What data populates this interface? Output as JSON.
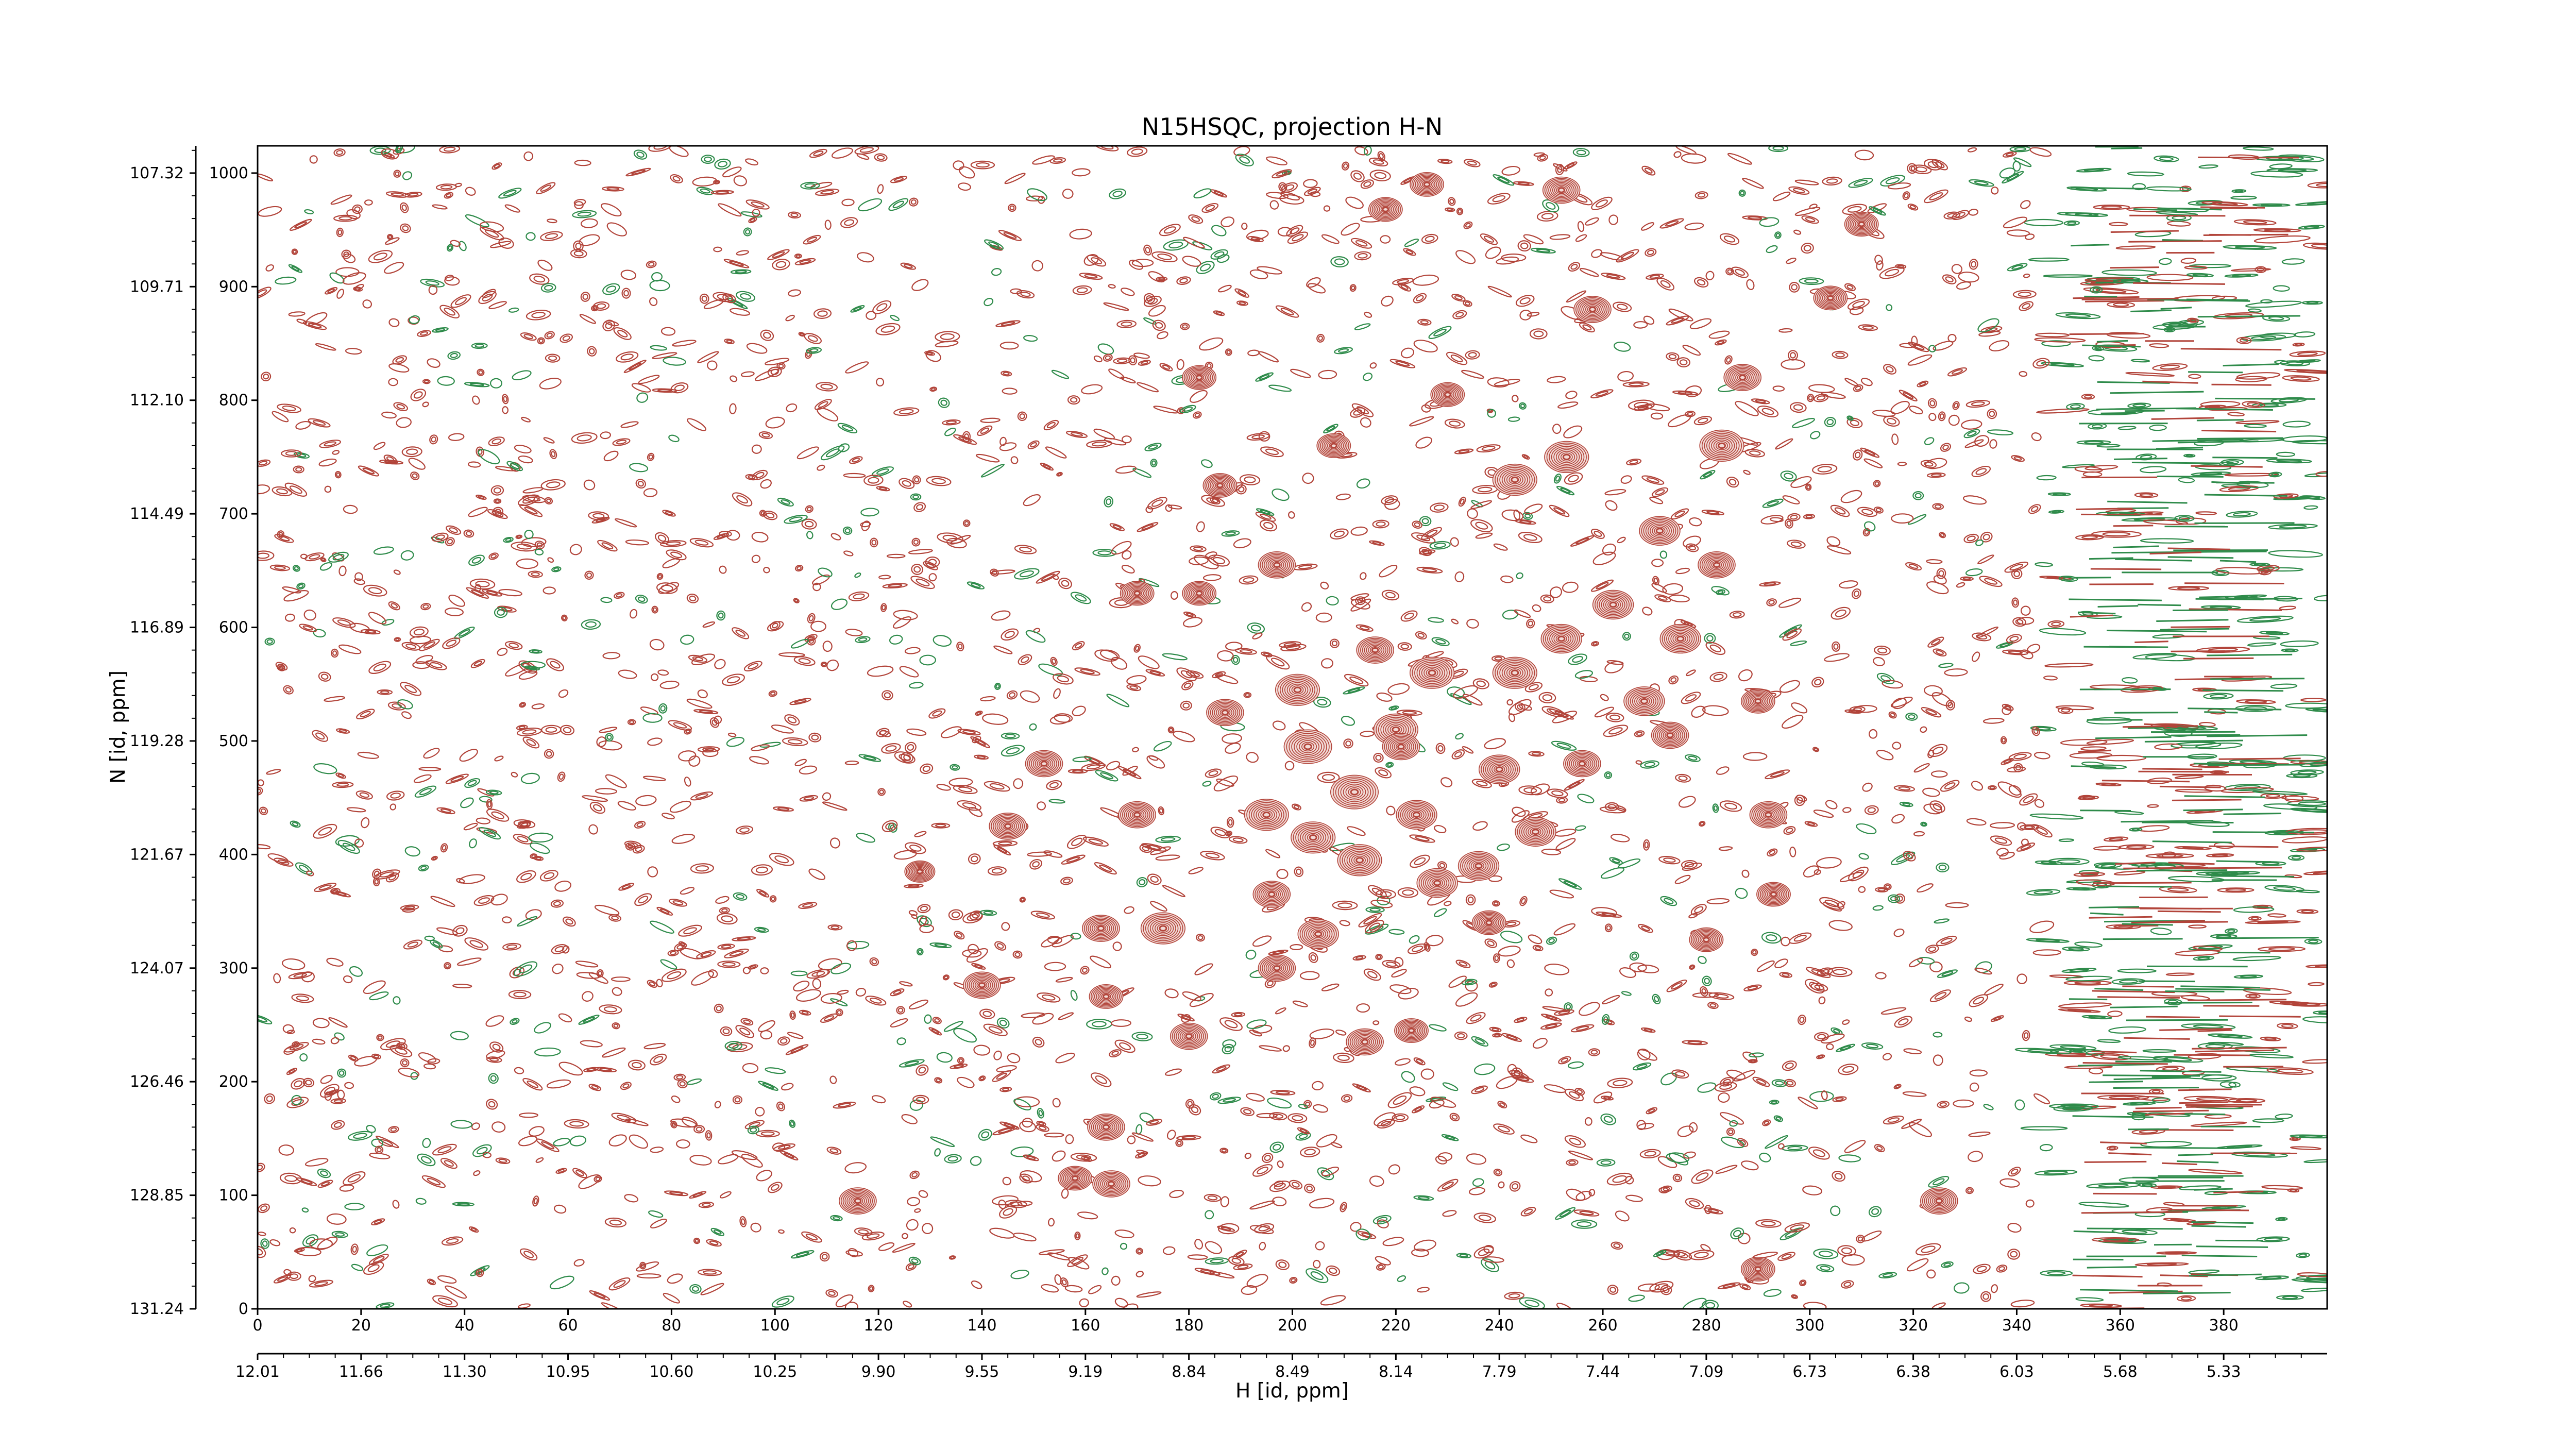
{
  "chart_data": {
    "type": "contour",
    "title": "N15HSQC, projection H-N",
    "xlabel": "H [id, ppm]",
    "ylabel": "N [id, ppm]",
    "xlim": [
      0,
      400
    ],
    "ylim": [
      0,
      1024
    ],
    "grid": false,
    "x_index_ticks": [
      "0",
      "20",
      "40",
      "60",
      "80",
      "100",
      "120",
      "140",
      "160",
      "180",
      "200",
      "220",
      "240",
      "260",
      "280",
      "300",
      "320",
      "340",
      "360",
      "380"
    ],
    "x_ppm_ticks": [
      "12.01",
      "11.66",
      "11.30",
      "10.95",
      "10.60",
      "10.25",
      "9.90",
      "9.55",
      "9.19",
      "8.84",
      "8.49",
      "8.14",
      "7.79",
      "7.44",
      "7.09",
      "6.73",
      "6.38",
      "6.03",
      "5.68",
      "5.33"
    ],
    "y_index_ticks": [
      "0",
      "100",
      "200",
      "300",
      "400",
      "500",
      "600",
      "700",
      "800",
      "900",
      "1000"
    ],
    "y_ppm_ticks": [
      "131.24",
      "128.85",
      "126.46",
      "124.07",
      "121.67",
      "119.28",
      "116.89",
      "114.49",
      "112.10",
      "109.71",
      "107.32"
    ],
    "colors": {
      "positive": "#b2443a",
      "negative": "#2e8b4a"
    },
    "peaks": [
      {
        "x": 116,
        "y": 95,
        "s": 1.0
      },
      {
        "x": 128,
        "y": 385,
        "s": 0.8
      },
      {
        "x": 140,
        "y": 285,
        "s": 1.0
      },
      {
        "x": 145,
        "y": 425,
        "s": 1.0
      },
      {
        "x": 152,
        "y": 480,
        "s": 1.0
      },
      {
        "x": 158,
        "y": 115,
        "s": 0.9
      },
      {
        "x": 164,
        "y": 160,
        "s": 1.0
      },
      {
        "x": 165,
        "y": 110,
        "s": 1.0
      },
      {
        "x": 164,
        "y": 275,
        "s": 0.9
      },
      {
        "x": 163,
        "y": 335,
        "s": 1.0
      },
      {
        "x": 170,
        "y": 630,
        "s": 0.9
      },
      {
        "x": 170,
        "y": 435,
        "s": 1.0
      },
      {
        "x": 175,
        "y": 335,
        "s": 1.2
      },
      {
        "x": 180,
        "y": 240,
        "s": 1.0
      },
      {
        "x": 182,
        "y": 820,
        "s": 0.9
      },
      {
        "x": 182,
        "y": 630,
        "s": 0.9
      },
      {
        "x": 186,
        "y": 725,
        "s": 0.9
      },
      {
        "x": 187,
        "y": 525,
        "s": 1.0
      },
      {
        "x": 195,
        "y": 435,
        "s": 1.2
      },
      {
        "x": 196,
        "y": 365,
        "s": 1.0
      },
      {
        "x": 197,
        "y": 300,
        "s": 1.0
      },
      {
        "x": 197,
        "y": 655,
        "s": 1.0
      },
      {
        "x": 201,
        "y": 545,
        "s": 1.2
      },
      {
        "x": 203,
        "y": 495,
        "s": 1.3
      },
      {
        "x": 204,
        "y": 415,
        "s": 1.2
      },
      {
        "x": 205,
        "y": 330,
        "s": 1.1
      },
      {
        "x": 208,
        "y": 760,
        "s": 0.9
      },
      {
        "x": 212,
        "y": 455,
        "s": 1.3
      },
      {
        "x": 213,
        "y": 395,
        "s": 1.2
      },
      {
        "x": 214,
        "y": 235,
        "s": 1.0
      },
      {
        "x": 216,
        "y": 580,
        "s": 1.0
      },
      {
        "x": 218,
        "y": 968,
        "s": 0.9
      },
      {
        "x": 220,
        "y": 510,
        "s": 1.2
      },
      {
        "x": 221,
        "y": 495,
        "s": 1.0
      },
      {
        "x": 223,
        "y": 245,
        "s": 0.9
      },
      {
        "x": 224,
        "y": 435,
        "s": 1.1
      },
      {
        "x": 226,
        "y": 990,
        "s": 0.9
      },
      {
        "x": 227,
        "y": 560,
        "s": 1.2
      },
      {
        "x": 228,
        "y": 375,
        "s": 1.1
      },
      {
        "x": 230,
        "y": 805,
        "s": 0.9
      },
      {
        "x": 236,
        "y": 390,
        "s": 1.1
      },
      {
        "x": 238,
        "y": 340,
        "s": 0.9
      },
      {
        "x": 240,
        "y": 475,
        "s": 1.1
      },
      {
        "x": 243,
        "y": 730,
        "s": 1.2
      },
      {
        "x": 243,
        "y": 560,
        "s": 1.2
      },
      {
        "x": 247,
        "y": 420,
        "s": 1.1
      },
      {
        "x": 252,
        "y": 590,
        "s": 1.1
      },
      {
        "x": 252,
        "y": 985,
        "s": 1.0
      },
      {
        "x": 253,
        "y": 750,
        "s": 1.2
      },
      {
        "x": 256,
        "y": 480,
        "s": 1.0
      },
      {
        "x": 258,
        "y": 880,
        "s": 1.0
      },
      {
        "x": 262,
        "y": 620,
        "s": 1.1
      },
      {
        "x": 268,
        "y": 535,
        "s": 1.1
      },
      {
        "x": 271,
        "y": 685,
        "s": 1.1
      },
      {
        "x": 273,
        "y": 505,
        "s": 1.0
      },
      {
        "x": 275,
        "y": 590,
        "s": 1.1
      },
      {
        "x": 283,
        "y": 760,
        "s": 1.2
      },
      {
        "x": 287,
        "y": 820,
        "s": 1.0
      },
      {
        "x": 282,
        "y": 655,
        "s": 1.0
      },
      {
        "x": 280,
        "y": 325,
        "s": 0.9
      },
      {
        "x": 290,
        "y": 535,
        "s": 0.9
      },
      {
        "x": 292,
        "y": 435,
        "s": 1.0
      },
      {
        "x": 293,
        "y": 365,
        "s": 0.9
      },
      {
        "x": 290,
        "y": 35,
        "s": 0.9
      },
      {
        "x": 304,
        "y": 890,
        "s": 0.9
      },
      {
        "x": 310,
        "y": 955,
        "s": 0.9
      },
      {
        "x": 325,
        "y": 95,
        "s": 1.0
      }
    ]
  }
}
